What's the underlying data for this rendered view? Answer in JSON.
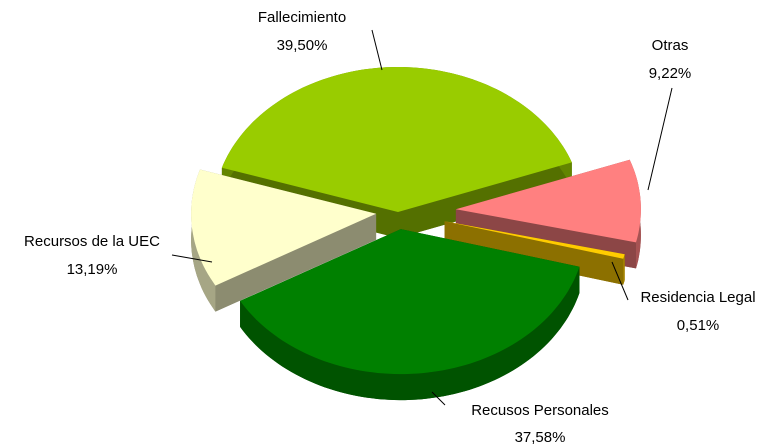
{
  "chart_data": {
    "type": "pie",
    "categories": [
      "Fallecimiento",
      "Otras",
      "Residencia Legal",
      "Recusos Personales",
      "Recursos de la UEC"
    ],
    "values": [
      39.5,
      9.22,
      0.51,
      37.58,
      13.19
    ],
    "value_labels": [
      "39,50%",
      "9,22%",
      "0,51%",
      "37,58%",
      "13,19%"
    ],
    "colors": [
      "#99cc00",
      "#ff8080",
      "#ffcc00",
      "#008000",
      "#ffffcc"
    ]
  }
}
